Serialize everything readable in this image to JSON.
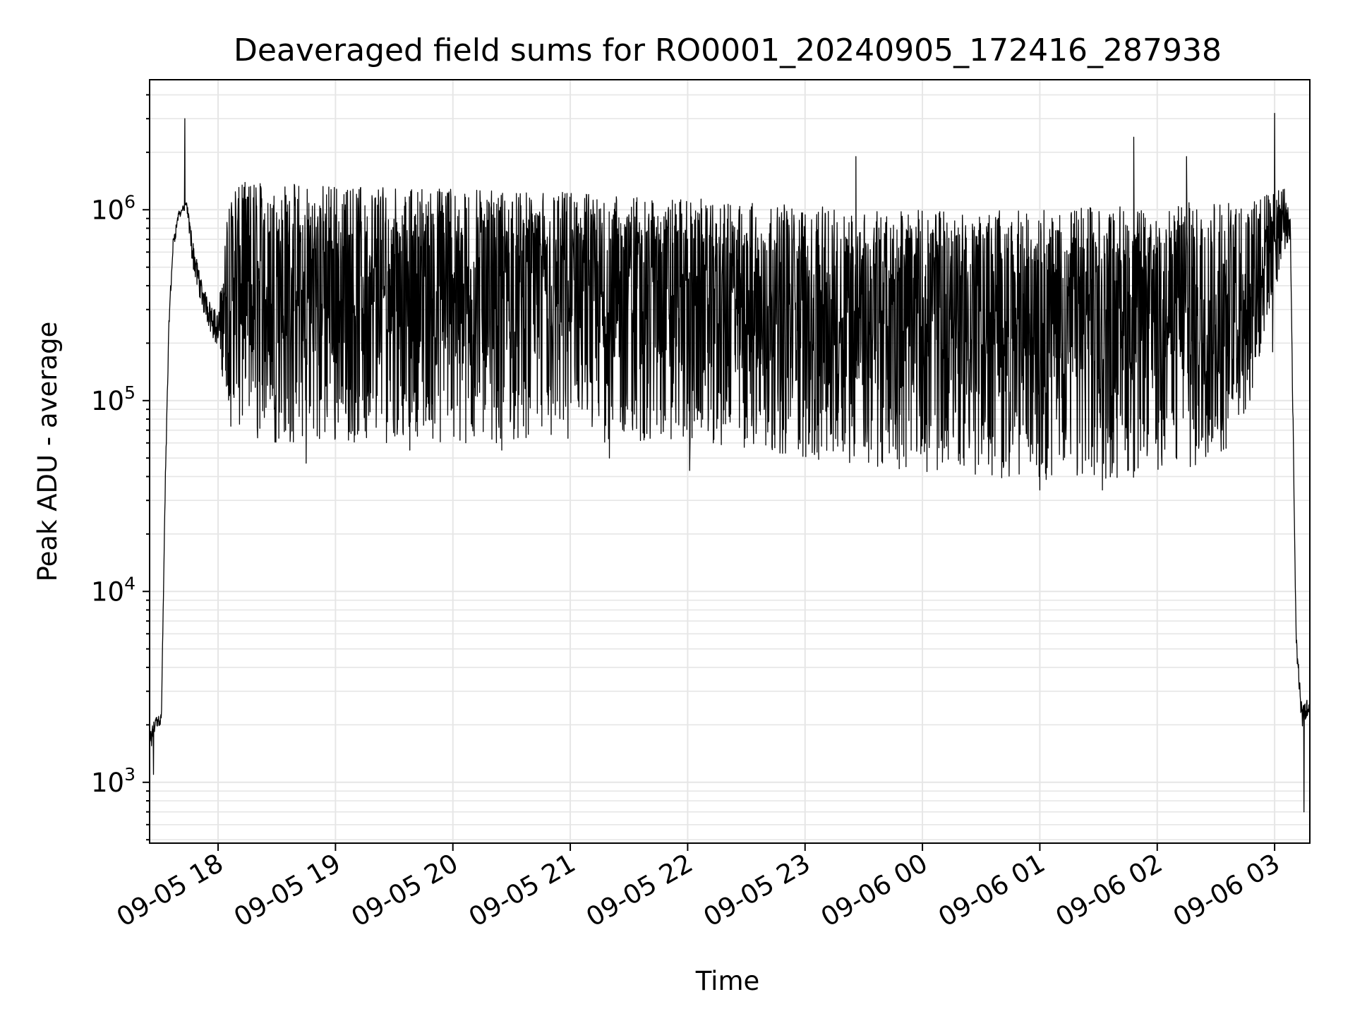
{
  "chart_data": {
    "type": "line",
    "title": "Deaveraged field sums for RO0001_20240905_172416_287938",
    "xlabel": "Time",
    "ylabel": "Peak ADU - average",
    "yscale": "log",
    "ylim": [
      480,
      4800000
    ],
    "xlim": [
      "2024-09-05 17:25",
      "2024-09-06 03:18"
    ],
    "grid": true,
    "line_color": "#000000",
    "x_ticks": [
      {
        "value": "2024-09-05 18:00",
        "label": "09-05 18"
      },
      {
        "value": "2024-09-05 19:00",
        "label": "09-05 19"
      },
      {
        "value": "2024-09-05 20:00",
        "label": "09-05 20"
      },
      {
        "value": "2024-09-05 21:00",
        "label": "09-05 21"
      },
      {
        "value": "2024-09-05 22:00",
        "label": "09-05 22"
      },
      {
        "value": "2024-09-05 23:00",
        "label": "09-05 23"
      },
      {
        "value": "2024-09-06 00:00",
        "label": "09-06 00"
      },
      {
        "value": "2024-09-06 01:00",
        "label": "09-06 01"
      },
      {
        "value": "2024-09-06 02:00",
        "label": "09-06 02"
      },
      {
        "value": "2024-09-06 03:00",
        "label": "09-06 03"
      }
    ],
    "y_ticks": [
      {
        "value": 1000,
        "base": "10",
        "exp": "3"
      },
      {
        "value": 10000,
        "base": "10",
        "exp": "4"
      },
      {
        "value": 100000,
        "base": "10",
        "exp": "5"
      },
      {
        "value": 1000000,
        "base": "10",
        "exp": "6"
      }
    ],
    "series": [
      {
        "envelope": {
          "x": [
            "2024-09-05 17:25",
            "2024-09-05 17:28",
            "2024-09-05 17:31",
            "2024-09-05 17:33",
            "2024-09-05 17:35",
            "2024-09-05 17:37",
            "2024-09-05 17:40",
            "2024-09-05 17:44",
            "2024-09-05 17:47",
            "2024-09-05 17:52",
            "2024-09-05 18:00",
            "2024-09-05 18:06",
            "2024-09-05 18:20",
            "2024-09-05 18:45",
            "2024-09-05 19:00",
            "2024-09-05 19:30",
            "2024-09-05 20:00",
            "2024-09-05 20:30",
            "2024-09-05 21:00",
            "2024-09-05 21:30",
            "2024-09-05 22:00",
            "2024-09-05 22:30",
            "2024-09-05 23:00",
            "2024-09-05 23:30",
            "2024-09-06 00:00",
            "2024-09-06 00:30",
            "2024-09-06 01:00",
            "2024-09-06 01:30",
            "2024-09-06 02:00",
            "2024-09-06 02:20",
            "2024-09-06 02:35",
            "2024-09-06 02:45",
            "2024-09-06 02:55",
            "2024-09-06 03:05",
            "2024-09-06 03:08",
            "2024-09-06 03:11",
            "2024-09-06 03:14",
            "2024-09-06 03:18"
          ],
          "high": [
            1800,
            2200,
            2300,
            40000,
            300000,
            700000,
            1000000,
            1100000,
            700000,
            400000,
            280000,
            1400000,
            1400000,
            1350000,
            1350000,
            1300000,
            1300000,
            1250000,
            1250000,
            1200000,
            1150000,
            1100000,
            1050000,
            1000000,
            1000000,
            1000000,
            1000000,
            1050000,
            1100000,
            1100000,
            1100000,
            1150000,
            1250000,
            1300000,
            900000,
            6000,
            2600,
            2800
          ],
          "low": [
            1300,
            1900,
            2000,
            30000,
            250000,
            600000,
            900000,
            1000000,
            500000,
            300000,
            180000,
            70000,
            60000,
            60000,
            60000,
            60000,
            60000,
            60000,
            60000,
            60000,
            58000,
            55000,
            50000,
            45000,
            42000,
            40000,
            38000,
            38000,
            40000,
            45000,
            55000,
            80000,
            200000,
            600000,
            700000,
            5000,
            1900,
            2300
          ]
        },
        "spikes": [
          {
            "x": "2024-09-05 17:27",
            "y": 1100
          },
          {
            "x": "2024-09-05 17:43",
            "y": 3000000
          },
          {
            "x": "2024-09-05 18:45",
            "y": 47000
          },
          {
            "x": "2024-09-05 19:38",
            "y": 55000
          },
          {
            "x": "2024-09-05 20:25",
            "y": 55000
          },
          {
            "x": "2024-09-05 21:20",
            "y": 50000
          },
          {
            "x": "2024-09-05 22:01",
            "y": 43000
          },
          {
            "x": "2024-09-05 23:26",
            "y": 1900000
          },
          {
            "x": "2024-09-06 01:00",
            "y": 34000
          },
          {
            "x": "2024-09-06 01:32",
            "y": 34000
          },
          {
            "x": "2024-09-06 01:48",
            "y": 2400000
          },
          {
            "x": "2024-09-06 02:15",
            "y": 1900000
          },
          {
            "x": "2024-09-06 02:59",
            "y": 180000
          },
          {
            "x": "2024-09-06 03:00",
            "y": 3200000
          },
          {
            "x": "2024-09-06 03:15",
            "y": 700
          }
        ]
      }
    ]
  }
}
